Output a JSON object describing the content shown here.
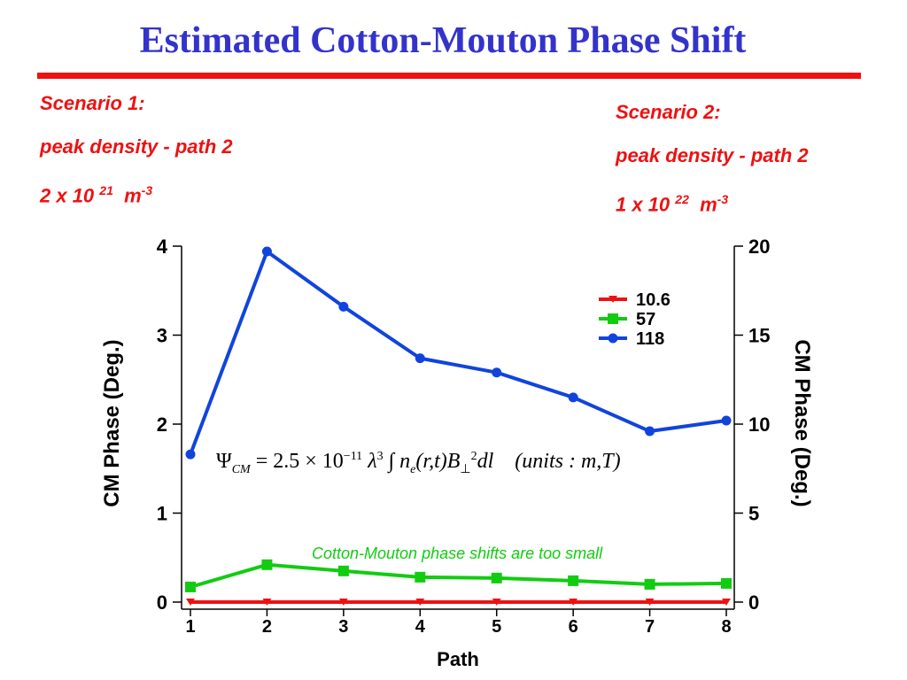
{
  "slide": {
    "title": "Estimated Cotton-Mouton Phase Shift",
    "scenario1": {
      "heading": "Scenario 1:",
      "line2": "peak density - path 2",
      "mantissa": "2 x 10 ",
      "exp": "21",
      "unit": "m",
      "unit_exp": "-3"
    },
    "scenario2": {
      "heading": "Scenario 2:",
      "line2": "peak density - path 2",
      "mantissa": "1 x 10 ",
      "exp": "22",
      "unit": "m",
      "unit_exp": "-3"
    },
    "formula": {
      "lhs": "Ψ",
      "lhs_sub": "CM",
      "coef": " = 2.5 × 10",
      "coef_exp": "−11",
      "lambda": " λ",
      "lambda_exp": "3",
      "integral": " ∫ ",
      "n": "n",
      "n_sub": "e",
      "args": "(r,t)",
      "b": "B",
      "b_sub": "⊥",
      "b_exp": "2",
      "dl": "dl",
      "units": "(units : m,T)"
    },
    "note": "Cotton-Mouton phase shifts are too small"
  },
  "chart_data": {
    "type": "line",
    "xlabel": "Path",
    "ylabel": "CM Phase (Deg.)",
    "y2label": "CM Phase (Deg.)",
    "x": [
      1,
      2,
      3,
      4,
      5,
      6,
      7,
      8
    ],
    "xlim": [
      1,
      8
    ],
    "ylim": [
      0,
      4
    ],
    "y2lim": [
      0,
      20
    ],
    "yticks": [
      0,
      1,
      2,
      3,
      4
    ],
    "y2ticks": [
      0,
      5,
      10,
      15,
      20
    ],
    "grid": false,
    "legend_position": "top-right",
    "series": [
      {
        "name": "10.6",
        "axis": "left",
        "color": "#ee1111",
        "marker": "triangle-down",
        "values": [
          0.0,
          0.0,
          0.0,
          0.0,
          0.0,
          0.0,
          0.0,
          0.0
        ]
      },
      {
        "name": "57",
        "axis": "left",
        "color": "#11cc11",
        "marker": "square",
        "values": [
          0.17,
          0.42,
          0.35,
          0.28,
          0.27,
          0.24,
          0.2,
          0.21
        ]
      },
      {
        "name": "118",
        "axis": "right",
        "color": "#1144dd",
        "marker": "circle",
        "values": [
          8.3,
          19.7,
          16.6,
          13.7,
          12.9,
          11.5,
          9.6,
          10.2
        ]
      }
    ]
  }
}
